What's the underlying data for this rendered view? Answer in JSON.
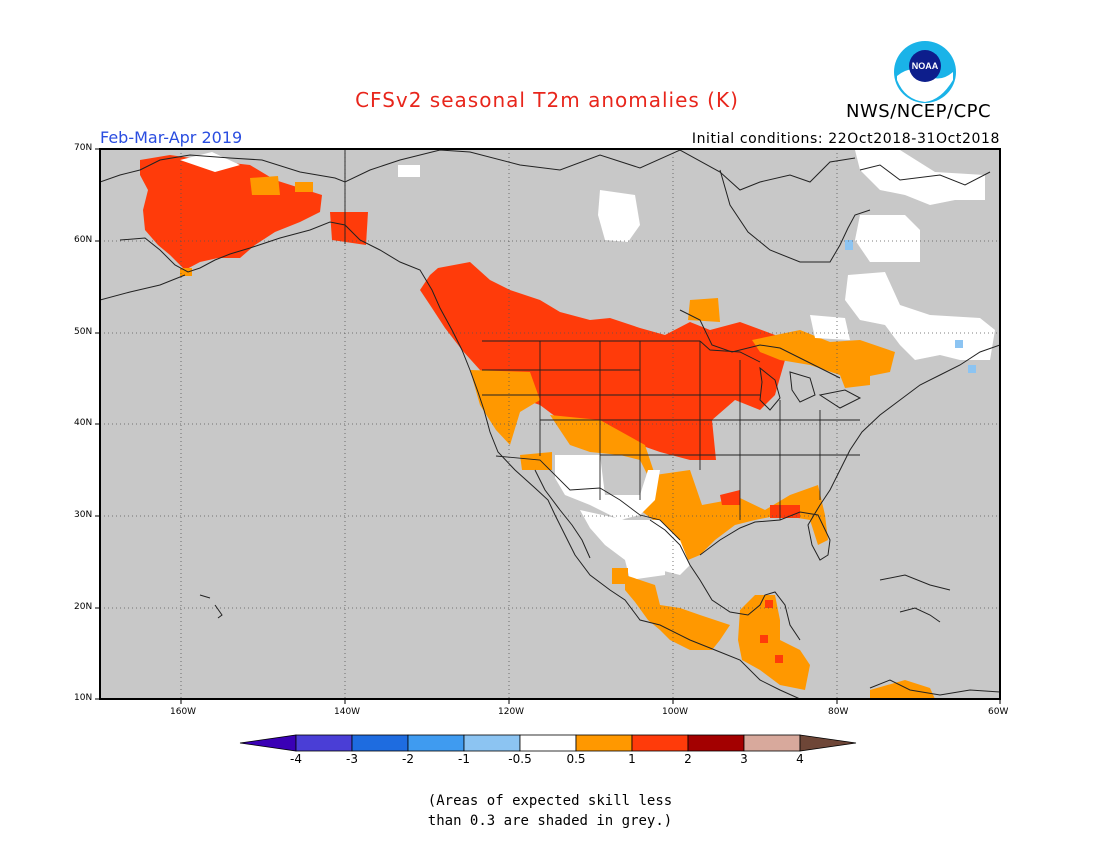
{
  "header": {
    "title": "CFSv2 seasonal T2m anomalies (K)",
    "agency": "NWS/NCEP/CPC",
    "season": "Feb-Mar-Apr 2019",
    "initial_conditions": "Initial conditions: 22Oct2018-31Oct2018",
    "logo_text": "NOAA"
  },
  "axes": {
    "lat_labels": [
      "70N",
      "60N",
      "50N",
      "40N",
      "30N",
      "20N",
      "10N"
    ],
    "lon_labels": [
      "160W",
      "140W",
      "120W",
      "100W",
      "80W",
      "60W"
    ]
  },
  "legend": {
    "labels": [
      "-4",
      "-3",
      "-2",
      "-1",
      "-0.5",
      "0.5",
      "1",
      "2",
      "3",
      "4"
    ],
    "colors": [
      "#3a00b5",
      "#4a3ed6",
      "#1e6ce0",
      "#3f9bf0",
      "#8cc4f2",
      "#ffffff",
      "#ff9800",
      "#ff3b0a",
      "#a30000",
      "#d8a99c",
      "#6e4637"
    ]
  },
  "note": {
    "line1": "(Areas of expected skill less",
    "line2": "than 0.3 are shaded in grey.)"
  },
  "map_style": {
    "ocean_grey": "#c8c8c8",
    "land_grey": "#c8c8c8"
  }
}
